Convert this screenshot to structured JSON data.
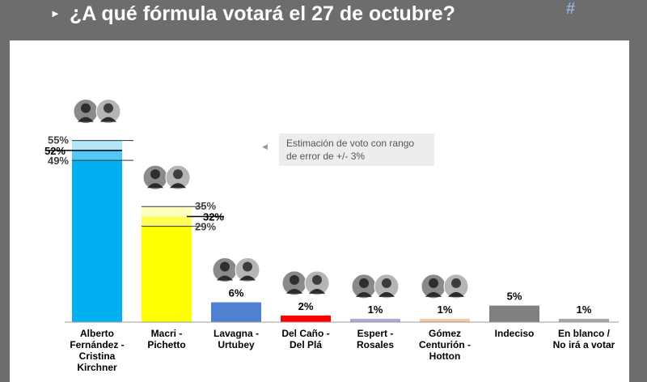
{
  "header": {
    "title": "¿A qué fórmula votará el 27 de octubre?",
    "bullet_icon": "triangle-bullet-icon"
  },
  "note": {
    "text_line1": "Estimación de voto con rango",
    "text_line2": "de error de +/- 3%"
  },
  "colors": {
    "header_bg": "#6d6d6d",
    "bar_fdf": "#00b0f0",
    "bar_macri": "#ffff00"
  },
  "chart_data": {
    "type": "bar",
    "title": "¿A qué fórmula votará el 27 de octubre?",
    "xlabel": "",
    "ylabel": "",
    "grid": false,
    "ylim": [
      0,
      60
    ],
    "categories": [
      [
        "Alberto",
        "Fernández -",
        "Cristina",
        "Kirchner"
      ],
      [
        "Macri -",
        "Pichetto"
      ],
      [
        "Lavagna -",
        "Urtubey"
      ],
      [
        "Del Caño -",
        "Del Plá"
      ],
      [
        "Espert -",
        "Rosales"
      ],
      [
        "Gómez",
        "Centurión -",
        "Hotton"
      ],
      [
        "Indeciso"
      ],
      [
        "En blanco /",
        "No irá a votar"
      ]
    ],
    "values": [
      52,
      32,
      6,
      2,
      1,
      1,
      5,
      1
    ],
    "labels": [
      "52%",
      "32%",
      "6%",
      "2%",
      "1%",
      "1%",
      "5%",
      "1%"
    ],
    "colors": [
      "#00b0f0",
      "#ffff00",
      "#4f81d3",
      "#ff0000",
      "#b4a7d6",
      "#f9c7a0",
      "#808080",
      "#a6a6a6"
    ],
    "ranges": [
      {
        "index": 0,
        "low": 49,
        "high": 55,
        "low_label": "49%",
        "high_label": "55%",
        "band_color": "#b3e5fb"
      },
      {
        "index": 1,
        "low": 29,
        "high": 35,
        "low_label": "29%",
        "high_label": "35%",
        "band_color": "#ffffc0"
      }
    ],
    "photos": [
      2,
      2,
      2,
      2,
      2,
      2,
      0,
      0
    ]
  }
}
